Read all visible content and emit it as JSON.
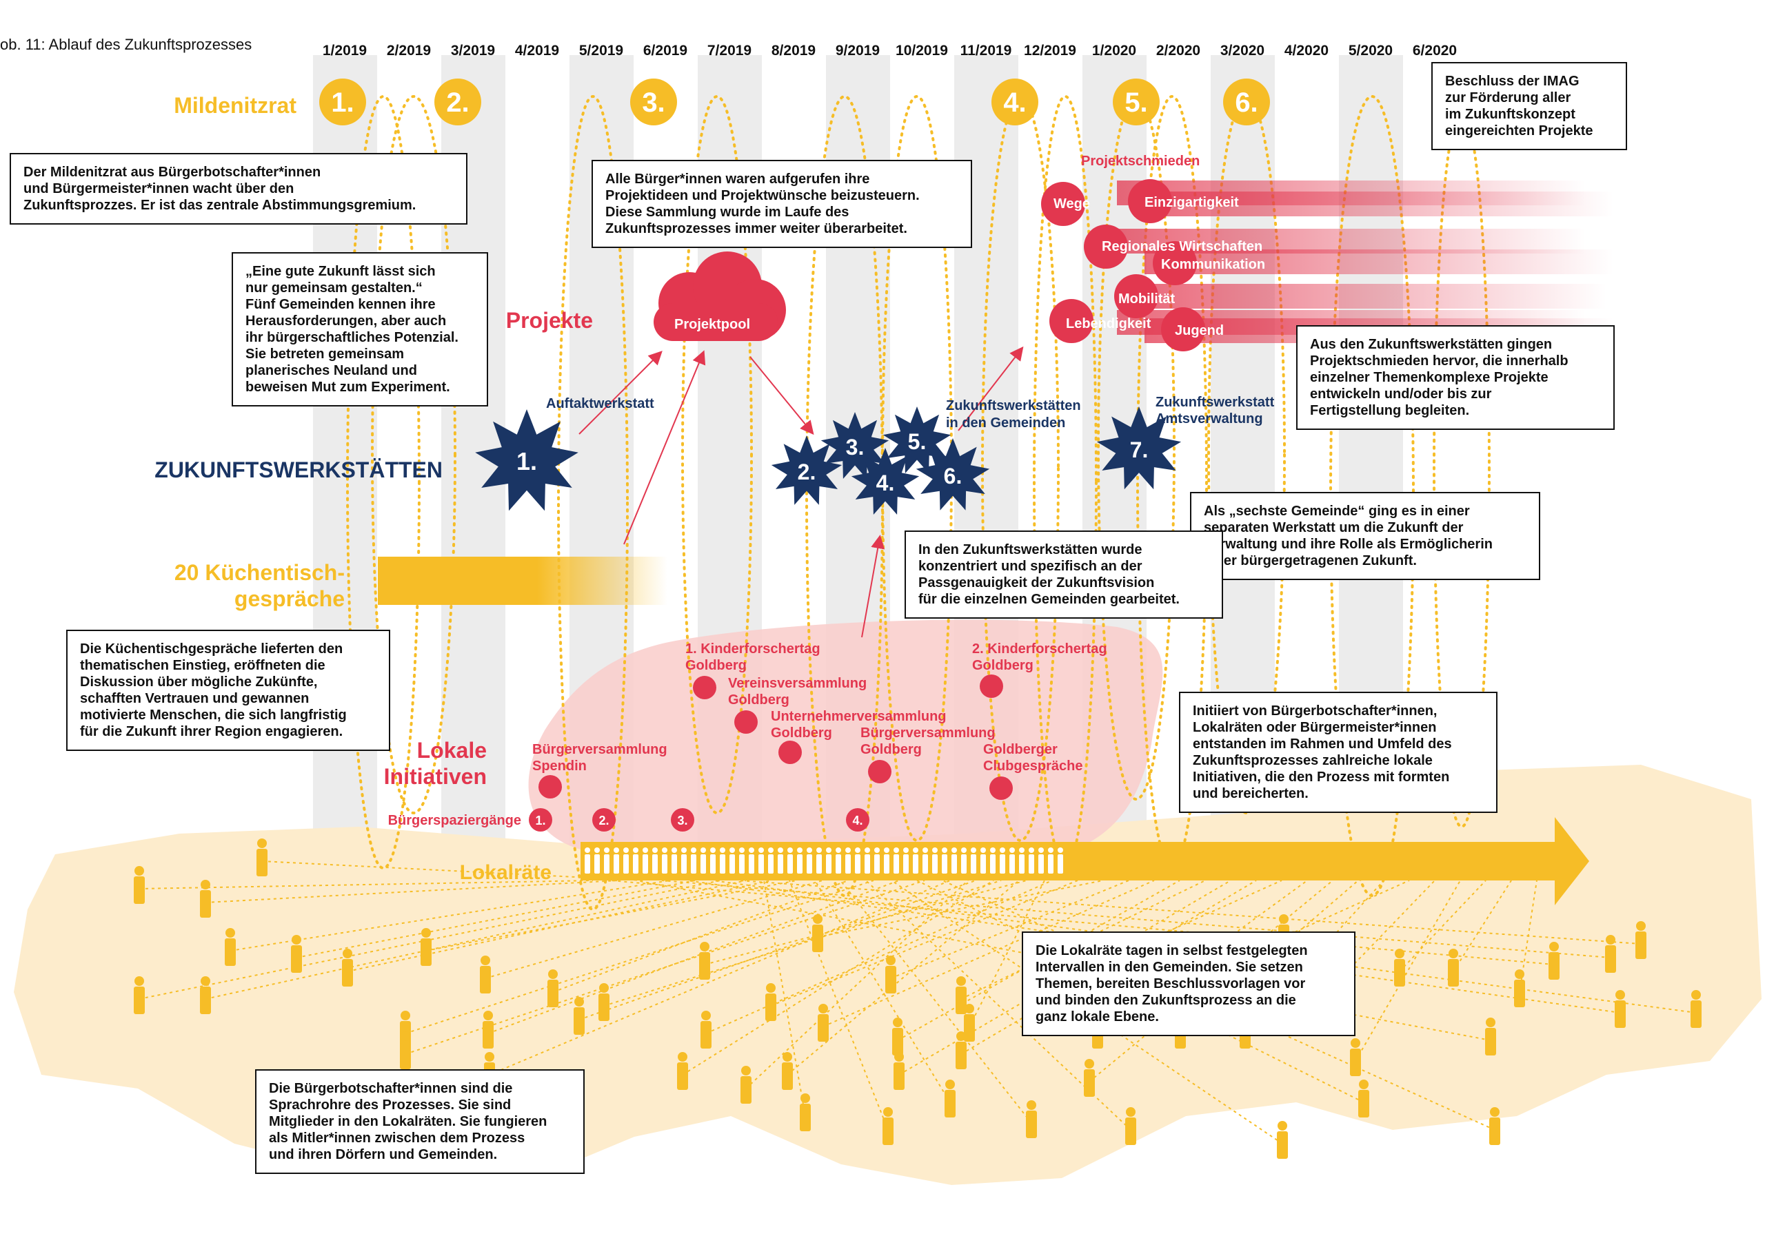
{
  "caption": "ob. 11: Ablauf des Zukunftsprozesses",
  "months": [
    "1/2019",
    "2/2019",
    "3/2019",
    "4/2019",
    "5/2019",
    "6/2019",
    "7/2019",
    "8/2019",
    "9/2019",
    "10/2019",
    "11/2019",
    "12/2019",
    "1/2020",
    "2/2020",
    "3/2020",
    "4/2020",
    "5/2020",
    "6/2020"
  ],
  "row_labels": {
    "mildenitzrat": "Mildenitzrat",
    "projekte": "Projekte",
    "zukunftswerkstaetten": "ZUKUNFTSWERKSTÄTTEN",
    "kuechentisch_1": "20 Küchentisch-",
    "kuechentisch_2": "gespräche",
    "lokale_1": "Lokale",
    "lokale_2": "Initiativen",
    "lokalraete": "Lokalräte"
  },
  "mildenitzrat_meetings": [
    "1.",
    "2.",
    "3.",
    "4.",
    "5.",
    "6."
  ],
  "projektpool": "Projektpool",
  "projektschmieden": {
    "title": "Projektschmieden",
    "items": [
      "Wege",
      "Einzigartigkeit",
      "Regionales Wirtschaften",
      "Kommunikation",
      "Mobilität",
      "Lebendigkeit",
      "Jugend"
    ]
  },
  "werkstaetten": {
    "stars": [
      "1.",
      "2.",
      "3.",
      "4.",
      "5.",
      "6.",
      "7."
    ],
    "auftakt": "Auftaktwerkstatt",
    "gemeinden_1": "Zukunftswerkstätten",
    "gemeinden_2": "in den Gemeinden",
    "amts_1": "Zukunftswerkstatt",
    "amts_2": "Amtsverwaltung"
  },
  "initiatives": [
    {
      "line1": "1. Kinderforschertag",
      "line2": "Goldberg"
    },
    {
      "line1": "Vereinsversammlung",
      "line2": "Goldberg"
    },
    {
      "line1": "Unternehmerversammlung",
      "line2": "Goldberg"
    },
    {
      "line1": "Bürgerversammlung",
      "line2": "Goldberg"
    },
    {
      "line1": "2. Kinderforschertag",
      "line2": "Goldberg"
    },
    {
      "line1": "Bürgerversammlung",
      "line2": "Spendin"
    },
    {
      "line1": "Goldberger",
      "line2": "Clubgespräche"
    }
  ],
  "buergerspaziergaenge": {
    "label": "Bürgerspaziergänge",
    "numbers": [
      "1.",
      "2.",
      "3.",
      "4."
    ]
  },
  "callouts": {
    "mildenitzrat": "Der Mildenitzrat aus Bürgerbotschafter*innen\nund Bürgermeister*innen wacht über den\nZukunftsprozzes. Er ist das zentrale Abstimmungsgremium.",
    "quote": "„Eine gute Zukunft lässt sich\nnur gemeinsam gestalten.“\nFünf Gemeinden kennen ihre\nHerausforderungen, aber auch\nihr bürgerschaftliches Potenzial.\nSie betreten gemeinsam\nplanerisches Neuland und\nbeweisen Mut zum Experiment.",
    "projektpool": "Alle Bürger*innen waren aufgerufen ihre\nProjektideen und Projektwünsche beizusteuern.\nDiese Sammlung wurde im Laufe des\nZukunftsprozesses immer weiter überarbeitet.",
    "imag": "Beschluss der IMAG\nzur Förderung aller\nim Zukunftskonzept\neingereichten Projekte",
    "schmieden": "Aus den Zukunftswerkstätten gingen\nProjektschmieden hervor, die innerhalb\neinzelner Themenkomplexe Projekte\nentwickeln und/oder bis zur\nFertigstellung begleiten.",
    "sechste": "Als „sechste Gemeinde“ ging es in einer\nseparaten Werkstatt um die Zukunft der\nVerwaltung und ihre Rolle als Ermöglicherin\neiner bürgergetragenen Zukunft.",
    "werkstaetten": "In den Zukunftswerkstätten wurde\nkonzentriert und spezifisch an der\nPassgenauigkeit der Zukunftsvision\nfür die einzelnen Gemeinden gearbeitet.",
    "kuechentisch": "Die Küchentischgespräche lieferten den\nthematischen Einstieg, eröffneten die\nDiskussion über mögliche Zukünfte,\nschafften Vertrauen und gewannen\nmotivierte Menschen, die sich langfristig\nfür die Zukunft ihrer Region engagieren.",
    "initiativen": "Initiiert von Bürgerbotschafter*innen,\nLokalräten oder Bürgermeister*innen\nentstanden im Rahmen und Umfeld des\nZukunftsprozesses zahlreiche lokale\nInitiativen, die den Prozess mit formten\nund bereicherten.",
    "lokalraete": "Die Lokalräte tagen in selbst festgelegten\nIntervallen in den Gemeinden. Sie setzen\nThemen, bereiten Beschlussvorlagen vor\nund binden den Zukunftsprozess an die\nganz lokale Ebene.",
    "botschafter": "Die Bürgerbotschafter*innen sind die\nSprachrohre des Prozesses. Sie sind\nMitglieder in den Lokalräten. Sie fungieren\nals Mitler*innen zwischen dem Prozess\nund ihren Dörfern und Gemeinden."
  },
  "colors": {
    "yellow": "#f6bd27",
    "red": "#e2374f",
    "navy": "#1a3564",
    "cream": "#fdeccc",
    "pink": "#f9d0cf",
    "stripe": "#ececec"
  }
}
